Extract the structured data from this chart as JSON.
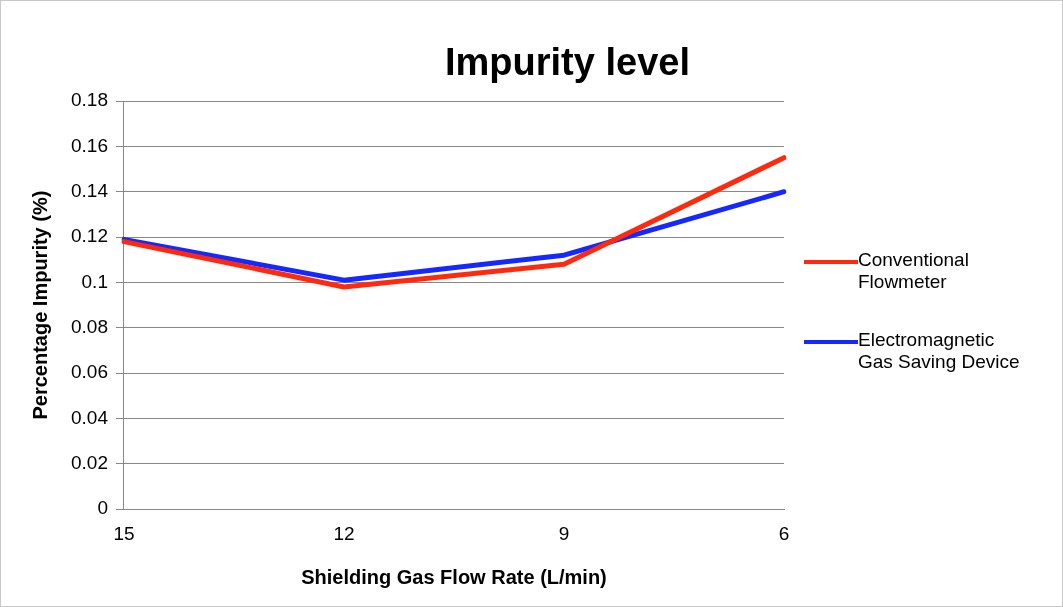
{
  "chart_data": {
    "type": "line",
    "title": "Impurity level",
    "xlabel": "Shielding Gas Flow Rate (L/min)",
    "ylabel": "Percentage Impurity (%)",
    "categories": [
      "15",
      "12",
      "9",
      "6"
    ],
    "series": [
      {
        "name": "Conventional Flowmeter",
        "color": "#ff2a0d",
        "values": [
          0.118,
          0.098,
          0.108,
          0.155
        ]
      },
      {
        "name": "Electromagnetic Gas Saving Device",
        "color": "#1428ff",
        "values": [
          0.119,
          0.101,
          0.112,
          0.14
        ]
      }
    ],
    "ylim": [
      0,
      0.18
    ],
    "yticks": [
      0,
      0.02,
      0.04,
      0.06,
      0.08,
      0.1,
      0.12,
      0.14,
      0.16,
      0.18
    ],
    "grid": "y",
    "legend": "right",
    "marker": "none",
    "line_style": "solid"
  }
}
